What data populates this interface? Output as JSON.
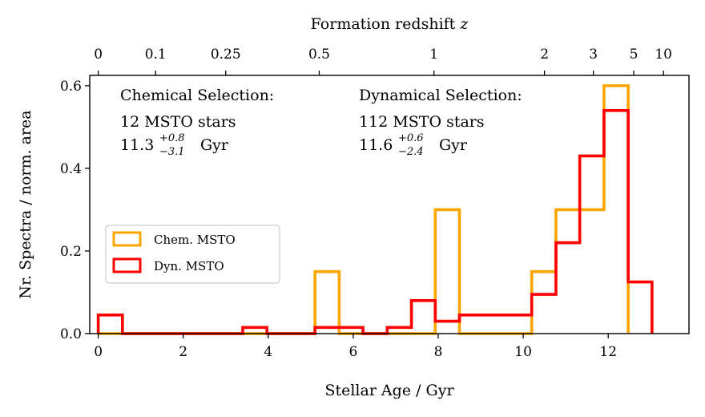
{
  "chart_data": {
    "type": "bar",
    "style": "step-histogram",
    "xlabel": "Stellar Age / Gyr",
    "ylabel": "Nr. Spectra / norm. area",
    "top_axis_label": "Formation redshift",
    "top_axis_var": "z",
    "xlim": [
      -0.2,
      13.9
    ],
    "ylim": [
      0,
      0.625
    ],
    "x_ticks": [
      0,
      2,
      4,
      6,
      8,
      10,
      12
    ],
    "y_ticks": [
      0.0,
      0.2,
      0.4,
      0.6
    ],
    "y_tick_labels": [
      "0.0",
      "0.2",
      "0.4",
      "0.6"
    ],
    "top_ticks": [
      {
        "label": "0",
        "age": 0.0
      },
      {
        "label": "0.1",
        "age": 1.35
      },
      {
        "label": "0.25",
        "age": 3.0
      },
      {
        "label": "0.5",
        "age": 5.2
      },
      {
        "label": "1",
        "age": 7.9
      },
      {
        "label": "2",
        "age": 10.5
      },
      {
        "label": "3",
        "age": 11.65
      },
      {
        "label": "5",
        "age": 12.6
      },
      {
        "label": "10",
        "age": 13.3
      }
    ],
    "series": [
      {
        "name": "Chem. MSTO",
        "color": "#FFA500",
        "bin_edges": [
          0.0,
          0.57,
          1.13,
          1.7,
          2.27,
          2.83,
          3.4,
          3.97,
          4.53,
          5.1,
          5.67,
          6.23,
          6.8,
          7.37,
          7.93,
          8.5,
          9.07,
          9.63,
          10.2,
          10.77,
          11.33,
          11.9,
          12.47
        ],
        "values": [
          0,
          0,
          0,
          0,
          0,
          0,
          0,
          0,
          0,
          0.15,
          0,
          0,
          0,
          0,
          0.3,
          0,
          0,
          0,
          0.15,
          0.3,
          0.3,
          0.6
        ]
      },
      {
        "name": "Dyn. MSTO",
        "color": "#FF0000",
        "bin_edges": [
          0.0,
          0.57,
          1.13,
          1.7,
          2.27,
          2.83,
          3.4,
          3.97,
          4.53,
          5.1,
          5.67,
          6.23,
          6.8,
          7.37,
          7.93,
          8.5,
          9.07,
          9.63,
          10.2,
          10.77,
          11.33,
          11.9,
          12.47,
          13.03
        ],
        "values": [
          0.045,
          0,
          0,
          0,
          0,
          0,
          0.015,
          0,
          0,
          0.015,
          0.015,
          0,
          0.015,
          0.08,
          0.03,
          0.045,
          0.045,
          0.045,
          0.095,
          0.22,
          0.43,
          0.54,
          0.125
        ]
      }
    ],
    "legend": {
      "placement": "center-left",
      "entries": [
        "Chem. MSTO",
        "Dyn. MSTO"
      ]
    },
    "annotations": {
      "chemical": {
        "title": "Chemical Selection:",
        "count": "12 MSTO stars",
        "age": "11.3",
        "age_plus": "+0.8",
        "age_minus": "−3.1",
        "unit": "Gyr"
      },
      "dynamical": {
        "title": "Dynamical Selection:",
        "count": "112 MSTO stars",
        "age": "11.6",
        "age_plus": "+0.6",
        "age_minus": "−2.4",
        "unit": "Gyr"
      }
    },
    "grid": false
  }
}
